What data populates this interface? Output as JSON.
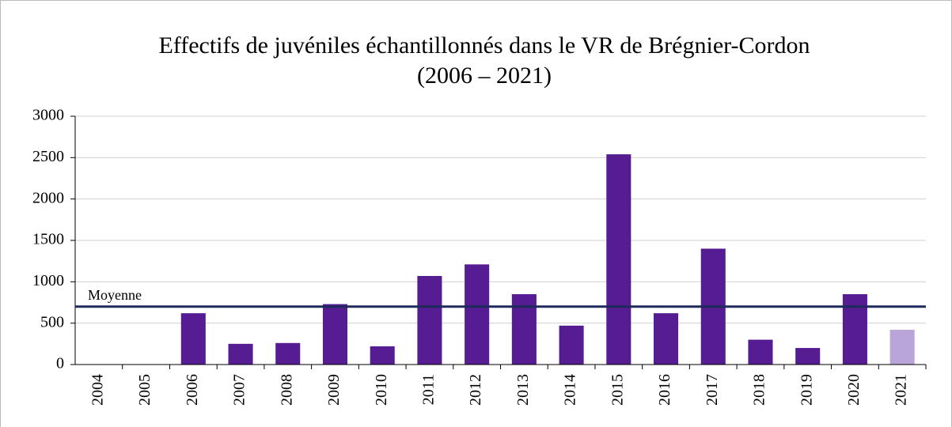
{
  "chart_data": {
    "type": "bar",
    "title": "Effectifs de juvéniles échantillonnés dans le VR de Brégnier-Cordon",
    "subtitle": "(2006 – 2021)",
    "categories": [
      "2004",
      "2005",
      "2006",
      "2007",
      "2008",
      "2009",
      "2010",
      "2011",
      "2012",
      "2013",
      "2014",
      "2015",
      "2016",
      "2017",
      "2018",
      "2019",
      "2020",
      "2021"
    ],
    "values": [
      null,
      null,
      620,
      250,
      260,
      730,
      220,
      1070,
      1210,
      850,
      470,
      2540,
      620,
      1400,
      300,
      200,
      850,
      420
    ],
    "colors": [
      "#561c91",
      "#561c91",
      "#561c91",
      "#561c91",
      "#561c91",
      "#561c91",
      "#561c91",
      "#561c91",
      "#561c91",
      "#561c91",
      "#561c91",
      "#561c91",
      "#561c91",
      "#561c91",
      "#561c91",
      "#561c91",
      "#561c91",
      "#b9a5d8"
    ],
    "ylim": [
      0,
      3000
    ],
    "yticks": [
      0,
      500,
      1000,
      1500,
      2000,
      2500,
      3000
    ],
    "grid": true,
    "reference_line": {
      "label": "Moyenne",
      "value": 700,
      "color": "#1f2a5c"
    }
  }
}
